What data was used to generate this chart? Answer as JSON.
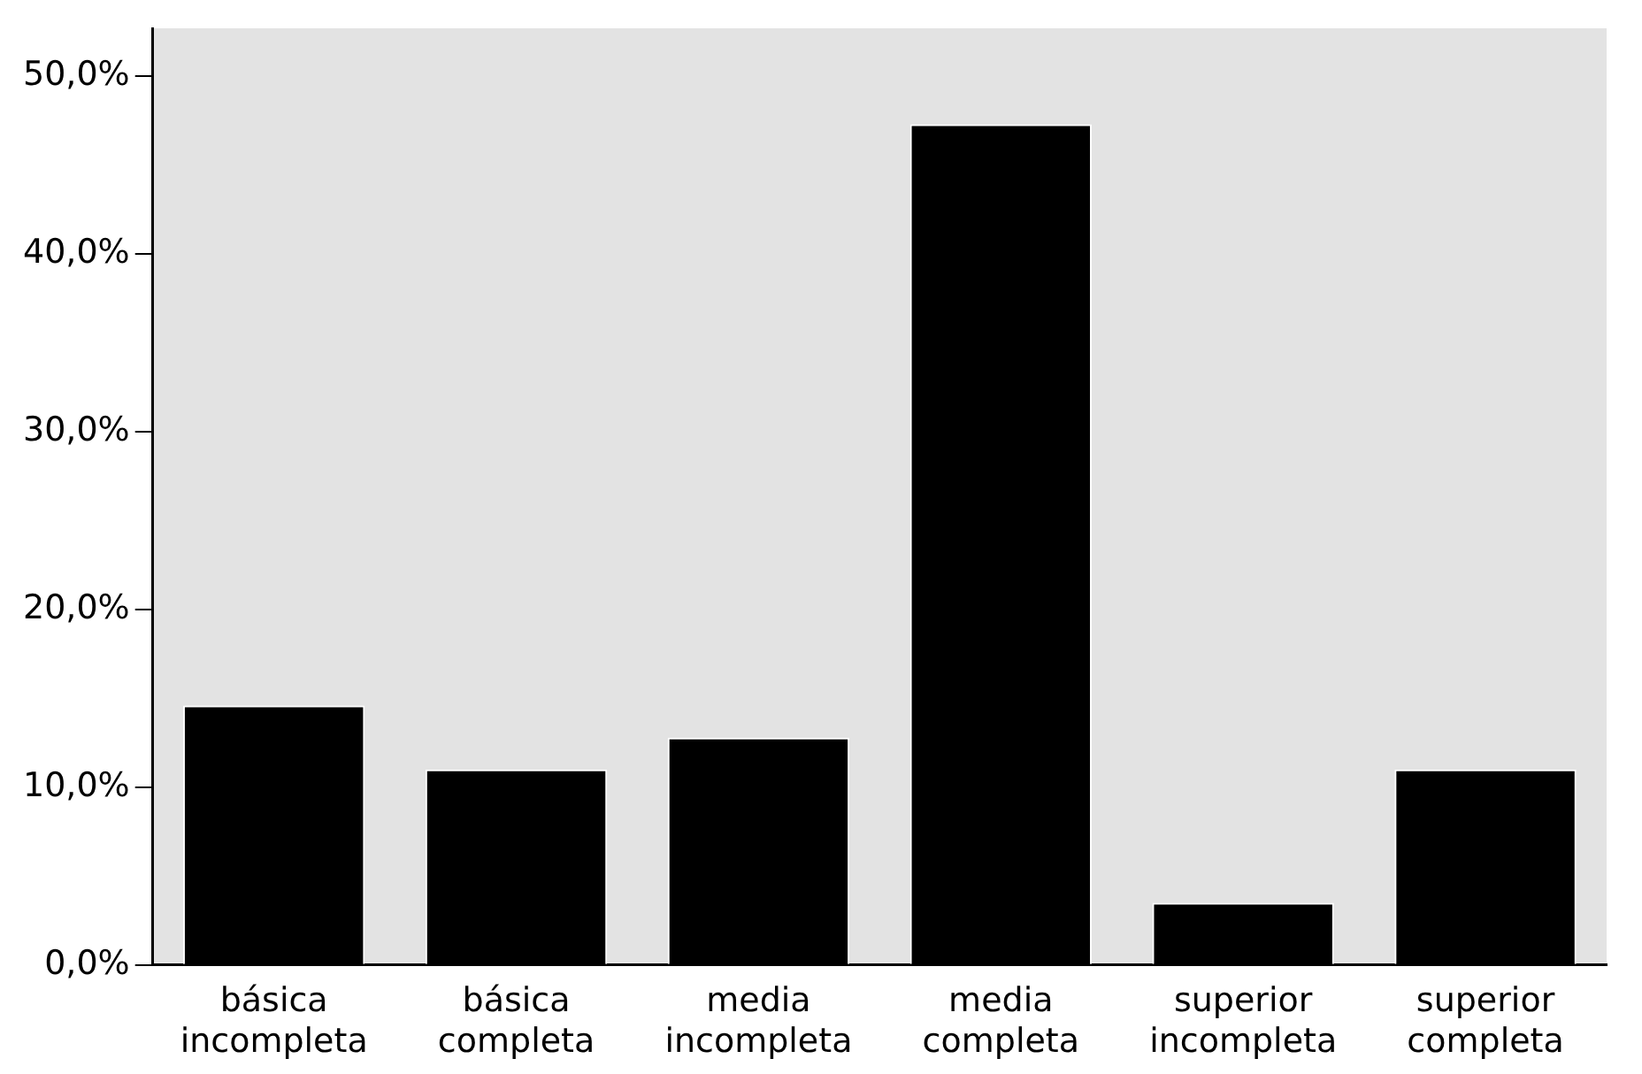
{
  "chart_data": {
    "type": "bar",
    "categories": [
      "básica incompleta",
      "básica completa",
      "media incompleta",
      "media completa",
      "superior incompleta",
      "superior completa"
    ],
    "values": [
      14.6,
      11.0,
      12.8,
      47.3,
      3.5,
      11.0
    ],
    "color": "#000000",
    "ylim": [
      0,
      52.7
    ],
    "yticks": [
      {
        "value": 0,
        "label": "0,0%"
      },
      {
        "value": 10,
        "label": "10,0%"
      },
      {
        "value": 20,
        "label": "20,0%"
      },
      {
        "value": 30,
        "label": "30,0%"
      },
      {
        "value": 40,
        "label": "40,0%"
      },
      {
        "value": 50,
        "label": "50,0%"
      }
    ],
    "grid": false,
    "legend": false
  }
}
